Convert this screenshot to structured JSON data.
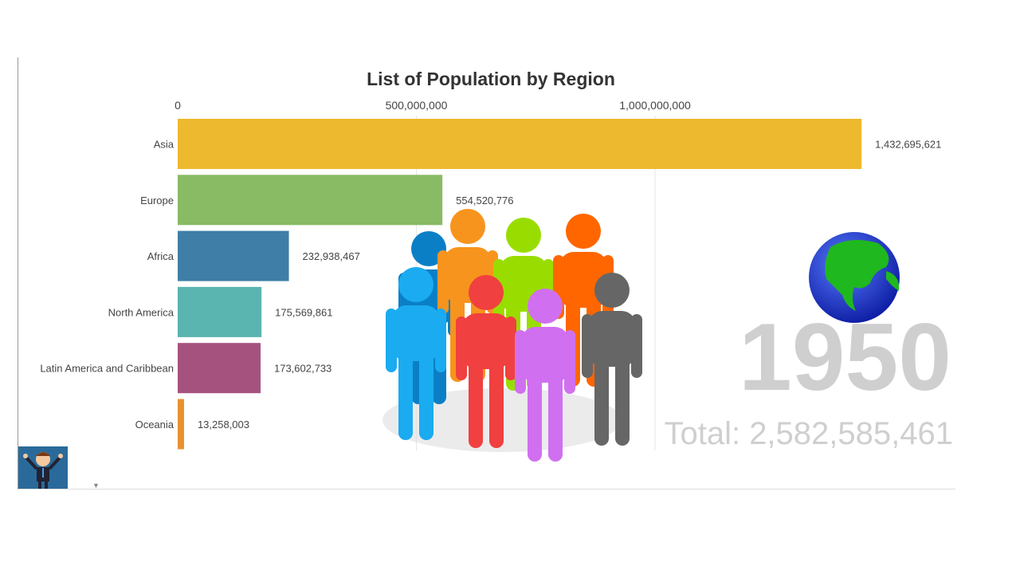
{
  "chart_data": {
    "type": "bar",
    "orientation": "horizontal",
    "title": "List of Population by Region",
    "categories": [
      "Asia",
      "Europe",
      "Africa",
      "North America",
      "Latin America and Caribbean",
      "Oceania"
    ],
    "values": [
      1432695621,
      554520776,
      232938467,
      175569861,
      173602733,
      13258003
    ],
    "value_labels": [
      "1,432,695,621",
      "554,520,776",
      "232,938,467",
      "175,569,861",
      "173,602,733",
      "13,258,003"
    ],
    "colors": [
      "#edb92e",
      "#88bb64",
      "#3f7ea6",
      "#5ab4b0",
      "#a5527f",
      "#e8912f"
    ],
    "xticks": [
      0,
      500000000,
      1000000000
    ],
    "xtick_labels": [
      "0",
      "500,000,000",
      "1,000,000,000"
    ],
    "xlim": [
      0,
      1000000000
    ],
    "axis_position": "top",
    "grid": true,
    "year": "1950",
    "total": "Total: 2,582,585,461"
  },
  "decorations": {
    "people_icon_colors": [
      "#0b7fc6",
      "#f7941d",
      "#99dd00",
      "#ff6600",
      "#1aabf0",
      "#f04040",
      "#d070f0",
      "#666666"
    ],
    "globe": "globe-icon",
    "avatar": "cartoon-man-avatar"
  }
}
